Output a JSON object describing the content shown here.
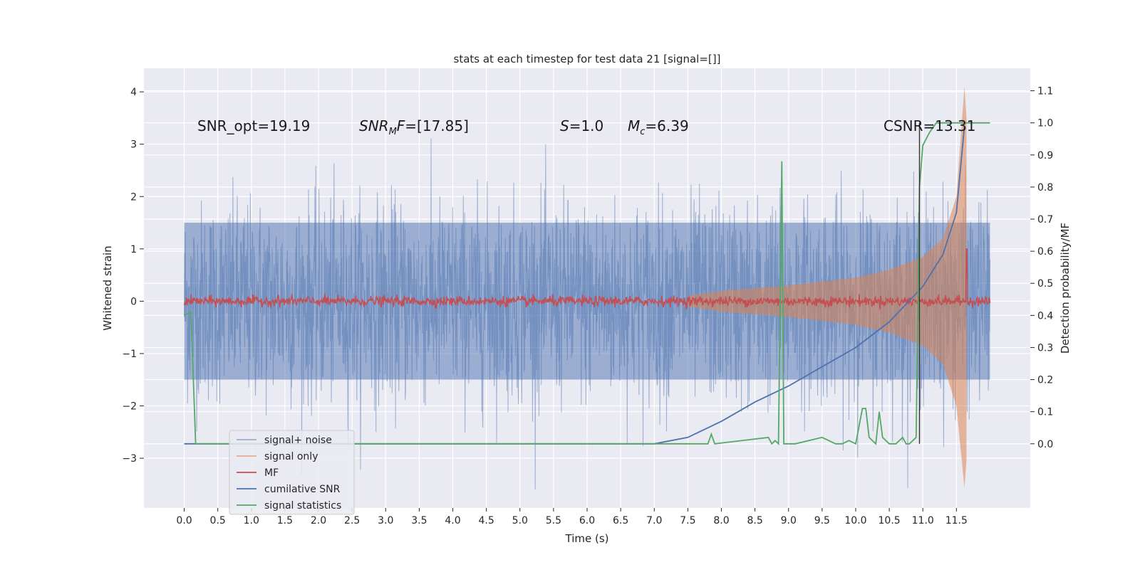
{
  "chart_data": {
    "type": "line",
    "title": "stats at each timestep for test data 21 [signal=[]]",
    "xlabel": "Time (s)",
    "ylabel": "Whitened strain",
    "ylabel_right": "Detection probability/MF",
    "xlim": [
      -0.6,
      12.6
    ],
    "ylim": [
      -3.95,
      4.45
    ],
    "ylim_right": [
      -0.2,
      1.17
    ],
    "x_ticks": [
      "0.0",
      "0.5",
      "1.0",
      "1.5",
      "2.0",
      "2.5",
      "3.0",
      "3.5",
      "4.0",
      "4.5",
      "5.0",
      "5.5",
      "6.0",
      "6.5",
      "7.0",
      "7.5",
      "8.0",
      "8.5",
      "9.0",
      "9.5",
      "10.0",
      "10.5",
      "11.0",
      "11.5"
    ],
    "y_ticks": [
      "4",
      "3",
      "2",
      "1",
      "0",
      "−1",
      "−2",
      "−3"
    ],
    "y_tick_values": [
      4,
      3,
      2,
      1,
      0,
      -1,
      -2,
      -3
    ],
    "y2_ticks": [
      "1.1",
      "1.0",
      "0.9",
      "0.8",
      "0.7",
      "0.6",
      "0.5",
      "0.4",
      "0.3",
      "0.2",
      "0.1",
      "0.0"
    ],
    "y2_tick_values": [
      1.1,
      1.0,
      0.9,
      0.8,
      0.7,
      0.6,
      0.5,
      0.4,
      0.3,
      0.2,
      0.1,
      0.0
    ],
    "grid": true,
    "legend_position": "lower-left",
    "series": [
      {
        "name": "signal+ noise",
        "color": "#4c72b0",
        "x_range": [
          0.0,
          12.0
        ],
        "envelope_y": [
          -1.5,
          1.5
        ],
        "peak_y": [
          -3.6,
          3.6
        ]
      },
      {
        "name": "signal only",
        "color": "#dd8452",
        "x": [
          7.5,
          8.0,
          9.0,
          10.0,
          10.5,
          11.0,
          11.3,
          11.5,
          11.62,
          11.65
        ],
        "amplitude": [
          0.1,
          0.2,
          0.3,
          0.45,
          0.6,
          0.85,
          1.2,
          2.0,
          4.1,
          3.5
        ]
      },
      {
        "name": "MF",
        "color": "#c44e52",
        "baseline_y": 0.0,
        "noise_amplitude": 0.08,
        "spike": {
          "x": 11.65,
          "y": 1.0
        }
      },
      {
        "name": "cumilative SNR",
        "color": "#4c72b0",
        "x": [
          6.0,
          7.0,
          7.5,
          8.0,
          8.5,
          9.0,
          9.5,
          10.0,
          10.5,
          11.0,
          11.3,
          11.5,
          11.62
        ],
        "y": [
          0.0,
          0.0,
          0.02,
          0.07,
          0.13,
          0.18,
          0.24,
          0.3,
          0.38,
          0.49,
          0.59,
          0.72,
          0.99
        ]
      },
      {
        "name": "signal statistics",
        "color": "#55a868",
        "x": [
          0.0,
          0.1,
          0.17,
          7.8,
          7.85,
          7.9,
          8.7,
          8.75,
          8.8,
          8.85,
          8.9,
          8.93,
          8.98,
          9.1,
          9.5,
          9.6,
          9.7,
          9.8,
          9.9,
          10.0,
          10.1,
          10.15,
          10.2,
          10.3,
          10.35,
          10.4,
          10.5,
          10.6,
          10.7,
          10.75,
          10.8,
          10.9,
          10.95,
          11.0,
          11.1,
          11.2,
          11.3,
          11.62,
          12.0
        ],
        "y": [
          0.4,
          0.41,
          0.0,
          0.0,
          0.03,
          0.0,
          0.02,
          0.0,
          0.01,
          0.0,
          0.88,
          0.0,
          0.0,
          0.0,
          0.02,
          0.01,
          0.0,
          0.0,
          0.01,
          0.0,
          0.11,
          0.11,
          0.02,
          0.0,
          0.1,
          0.02,
          0.0,
          0.0,
          0.02,
          0.0,
          0.0,
          0.02,
          0.8,
          0.93,
          0.97,
          1.0,
          1.0,
          1.0,
          1.0
        ]
      }
    ],
    "vertical_line": {
      "x": 10.95,
      "y_right": [
        0.0,
        1.0
      ]
    },
    "annotations": [
      {
        "text": "SNR_opt=19.19",
        "x": 0.2,
        "y": 3.3
      },
      {
        "text_main": "SNR",
        "text_sub": "M",
        "text_tail": "F=[17.85]",
        "x": 2.6,
        "y": 3.3
      },
      {
        "text_main": "S",
        "text_tail": "=1.0",
        "x": 5.6,
        "y": 3.3
      },
      {
        "text_main": "M",
        "text_sub": "c",
        "text_tail": "=6.39",
        "x": 6.6,
        "y": 3.3
      },
      {
        "text": "CSNR=13.31",
        "x": 10.4,
        "y": 3.3
      }
    ]
  }
}
